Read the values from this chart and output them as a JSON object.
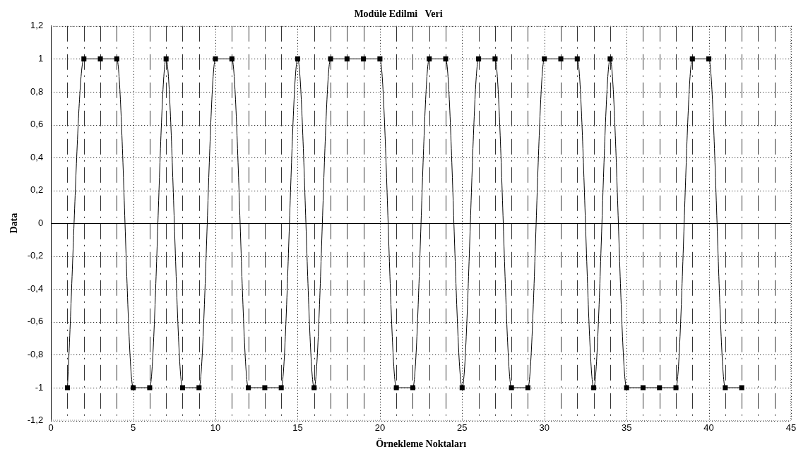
{
  "chart_data": {
    "type": "line",
    "title": "Modüle Edilmi   Veri",
    "xlabel": "Örnekleme Noktaları",
    "ylabel": "Data",
    "x": [
      1,
      2,
      3,
      4,
      5,
      6,
      7,
      8,
      9,
      10,
      11,
      12,
      13,
      14,
      15,
      16,
      17,
      18,
      19,
      20,
      21,
      22,
      23,
      24,
      25,
      26,
      27,
      28,
      29,
      30,
      31,
      32,
      33,
      34,
      35,
      36,
      37,
      38,
      39,
      40,
      41,
      42
    ],
    "series": [
      {
        "color": "#000000",
        "values": [
          -1,
          1,
          1,
          1,
          -1,
          -1,
          1,
          -1,
          -1,
          1,
          1,
          -1,
          -1,
          -1,
          1,
          -1,
          1,
          1,
          1,
          1,
          -1,
          -1,
          1,
          1,
          -1,
          1,
          1,
          -1,
          -1,
          1,
          1,
          1,
          -1,
          1,
          -1,
          -1,
          -1,
          -1,
          1,
          1,
          -1,
          -1
        ]
      }
    ],
    "xlim": [
      0,
      45
    ],
    "xticks": [
      0,
      {
        "value": 1,
        "label": null
      },
      {
        "value": 2,
        "label": null
      },
      {
        "value": 3,
        "label": null
      },
      {
        "value": 4,
        "label": null
      },
      5,
      {
        "value": 6,
        "label": null
      },
      {
        "value": 7,
        "label": null
      },
      {
        "value": 8,
        "label": null
      },
      {
        "value": 9,
        "label": null
      },
      10,
      {
        "value": 11,
        "label": null
      },
      {
        "value": 12,
        "label": null
      },
      {
        "value": 13,
        "label": null
      },
      {
        "value": 14,
        "label": null
      },
      15,
      {
        "value": 16,
        "label": null
      },
      {
        "value": 17,
        "label": null
      },
      {
        "value": 18,
        "label": null
      },
      {
        "value": 19,
        "label": null
      },
      20,
      {
        "value": 21,
        "label": null
      },
      {
        "value": 22,
        "label": null
      },
      {
        "value": 23,
        "label": null
      },
      {
        "value": 24,
        "label": null
      },
      25,
      {
        "value": 26,
        "label": null
      },
      {
        "value": 27,
        "label": null
      },
      {
        "value": 28,
        "label": null
      },
      {
        "value": 29,
        "label": null
      },
      30,
      {
        "value": 31,
        "label": null
      },
      {
        "value": 32,
        "label": null
      },
      {
        "value": 33,
        "label": null
      },
      {
        "value": 34,
        "label": null
      },
      35,
      {
        "value": 36,
        "label": null
      },
      {
        "value": 37,
        "label": null
      },
      {
        "value": 38,
        "label": null
      },
      {
        "value": 39,
        "label": null
      },
      40,
      {
        "value": 41,
        "label": null
      },
      {
        "value": 42,
        "label": null
      },
      {
        "value": 43,
        "label": null
      },
      {
        "value": 44,
        "label": null
      },
      45
    ],
    "ylim": [
      -1.2,
      1.2
    ],
    "yticks": [
      {
        "value": -1.2,
        "label": "-1,2"
      },
      -1,
      {
        "value": -0.8,
        "label": "-0,8"
      },
      {
        "value": -0.6,
        "label": "-0,6"
      },
      {
        "value": -0.4,
        "label": "-0,4"
      },
      {
        "value": -0.2,
        "label": "-0,2"
      },
      0,
      {
        "value": 0.2,
        "label": "0,2"
      },
      {
        "value": 0.4,
        "label": "0,4"
      },
      {
        "value": 0.6,
        "label": "0,6"
      },
      {
        "value": 0.8,
        "label": "0,8"
      },
      1,
      {
        "value": 1.2,
        "label": "1,2"
      }
    ],
    "grid": true,
    "legend": false,
    "marker": "square",
    "line_style": "solid"
  }
}
